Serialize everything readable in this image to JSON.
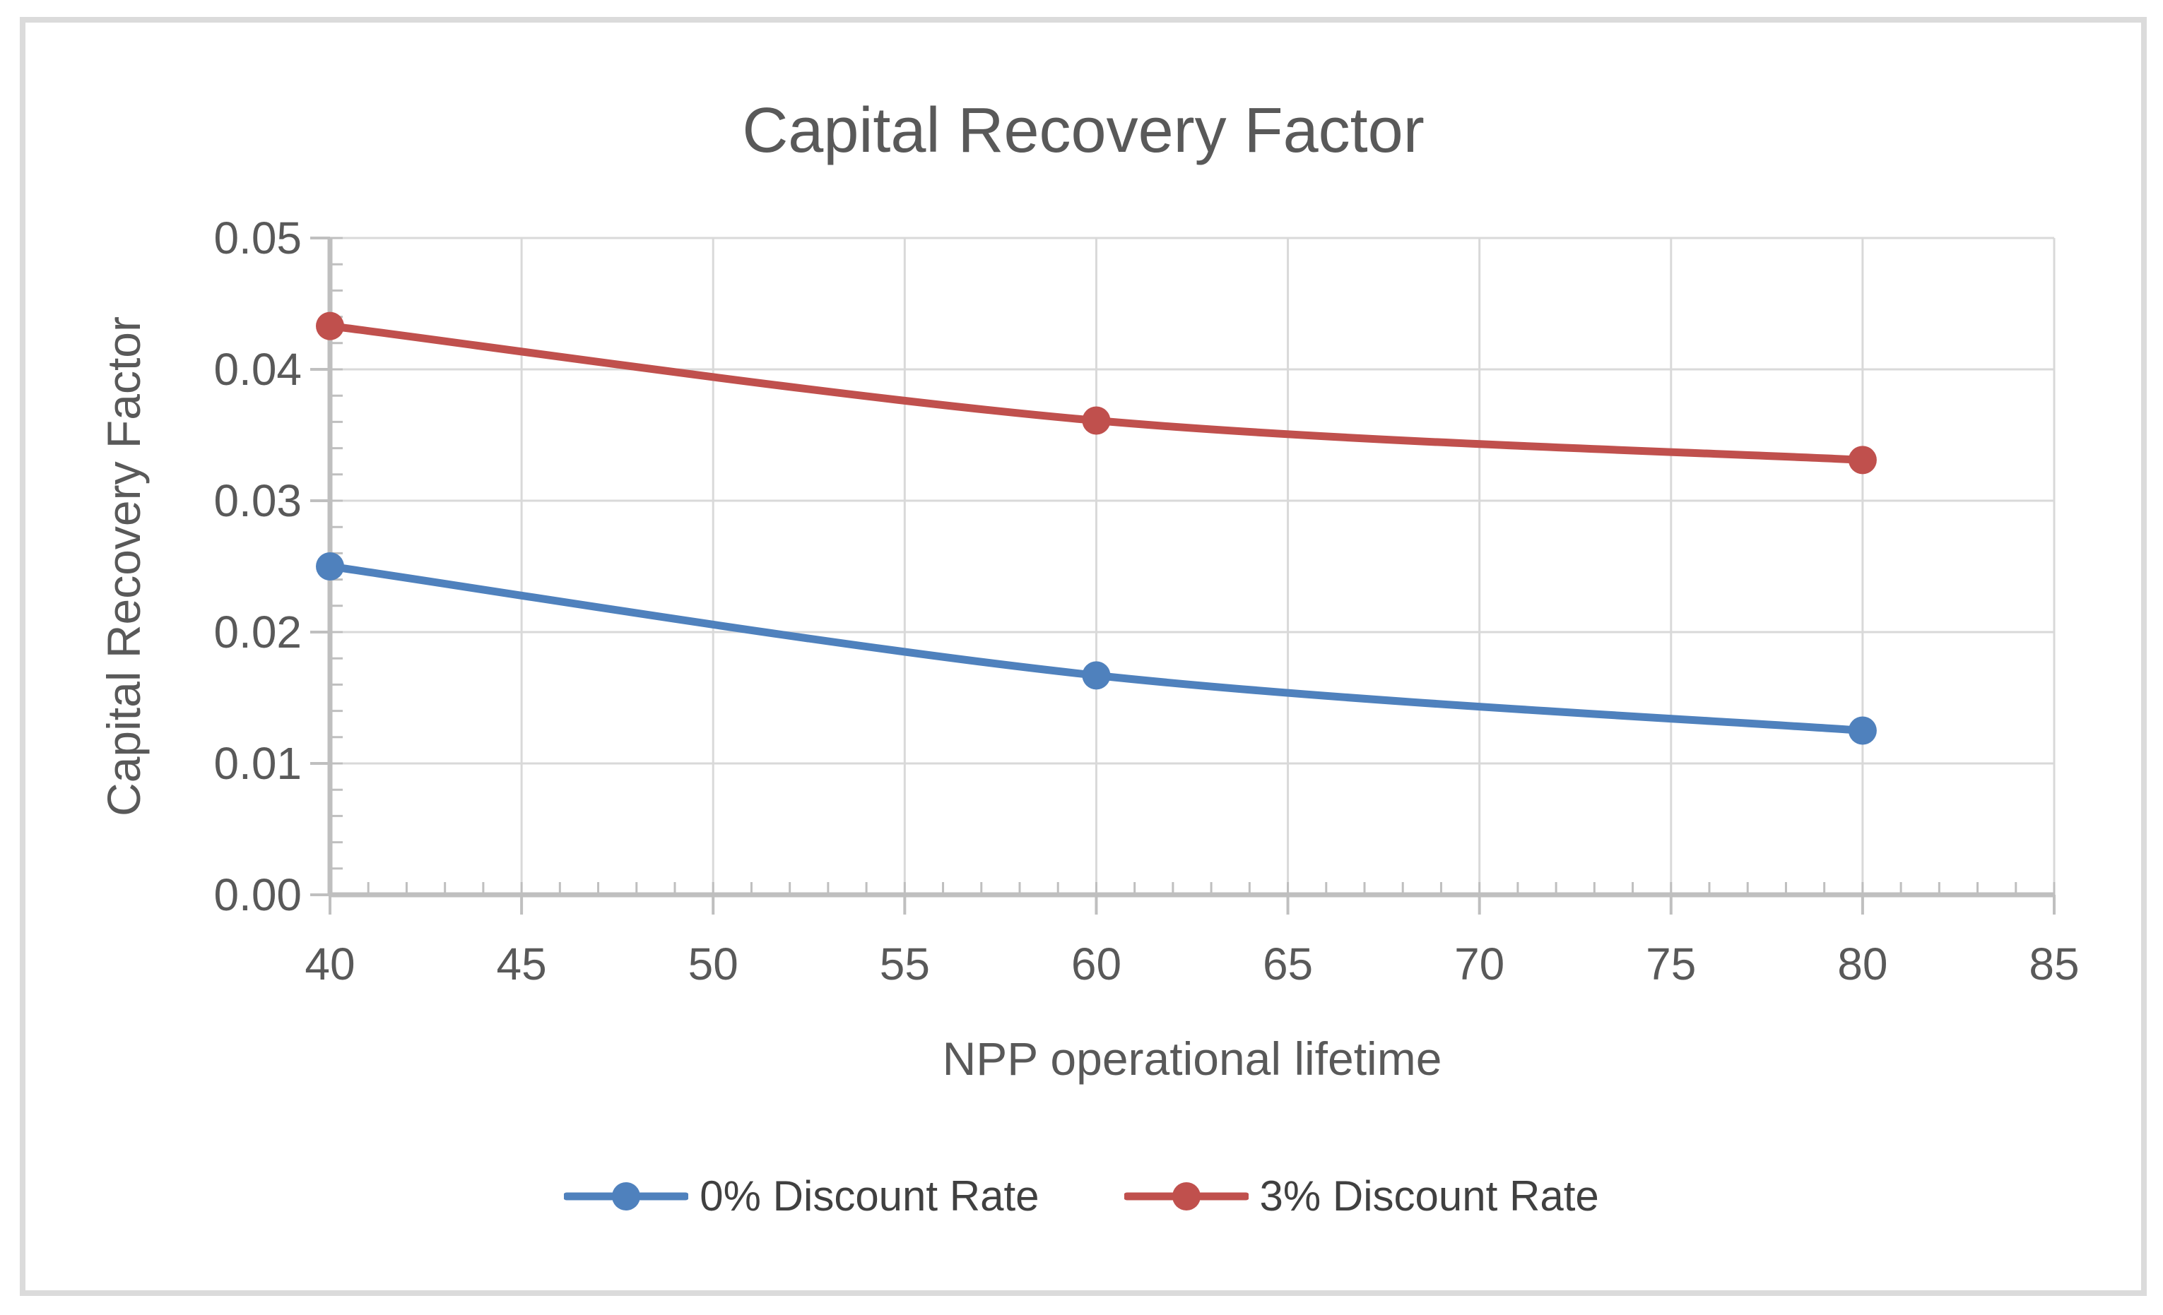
{
  "window": {
    "background": "#ffffff",
    "frame_border_color": "#dbdbdb"
  },
  "chart_data": {
    "type": "line",
    "title": "Capital Recovery Factor",
    "xlabel": "NPP operational lifetime",
    "ylabel": "Capital Recovery  Factor",
    "x": [
      40,
      60,
      80
    ],
    "series": [
      {
        "name": "0% Discount Rate",
        "color": "#4F81BD",
        "values": [
          0.025,
          0.0167,
          0.0125
        ]
      },
      {
        "name": "3% Discount Rate",
        "color": "#C0504D",
        "values": [
          0.0433,
          0.0361,
          0.0331
        ]
      }
    ],
    "x_axis": {
      "min": 40,
      "max": 85,
      "major_step": 5,
      "minor_step": 1,
      "tick_labels": [
        "40",
        "45",
        "50",
        "55",
        "60",
        "65",
        "70",
        "75",
        "80",
        "85"
      ]
    },
    "y_axis": {
      "min": 0,
      "max": 0.05,
      "major_step": 0.01,
      "minor_step": 0.002,
      "tick_labels": [
        "0.00",
        "0.01",
        "0.02",
        "0.03",
        "0.04",
        "0.05"
      ]
    },
    "grid": true,
    "smoothed_lines": true,
    "legend_position": "bottom",
    "styles": {
      "text_color": "#595959",
      "legend_text_color": "#404040",
      "gridline_color": "#d9d9d9",
      "axis_line_color": "#bfbfbf",
      "line_width": 11,
      "marker_radius": 20
    }
  }
}
